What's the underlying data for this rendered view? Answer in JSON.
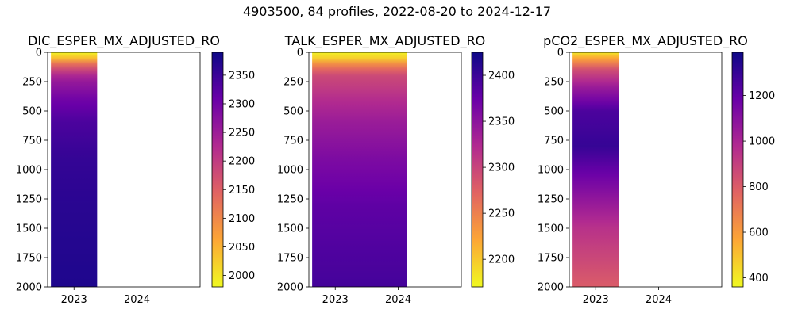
{
  "figure": {
    "suptitle": "4903500, 84 profiles, 2022-08-20 to 2024-12-17"
  },
  "colormap": {
    "name": "plasma_r",
    "stops": [
      "#f0f921",
      "#fca636",
      "#e16462",
      "#b12a90",
      "#6a00a8",
      "#0d0887"
    ]
  },
  "chart_data": [
    {
      "type": "heatmap",
      "title": "DIC_ESPER_MX_ADJUSTED_RO",
      "x": {
        "tick_labels": [
          "2023",
          "2024"
        ],
        "tick_values": [
          "2023-01-01",
          "2024-01-01"
        ],
        "range": [
          "2022-08-01",
          "2025-01-01"
        ]
      },
      "y": {
        "inverted": true,
        "range": [
          0,
          2000
        ],
        "tick_values": [
          0,
          250,
          500,
          750,
          1000,
          1250,
          1500,
          1750,
          2000
        ]
      },
      "data_extent": {
        "start": "2022-08-20",
        "end": "2023-05-15"
      },
      "colorbar": {
        "range": [
          1980,
          2390
        ],
        "ticks": [
          2000,
          2050,
          2100,
          2150,
          2200,
          2250,
          2300,
          2350
        ]
      },
      "profile": {
        "depths": [
          0,
          60,
          110,
          220,
          400,
          600,
          900,
          1300,
          2000
        ],
        "values": [
          1985,
          2050,
          2150,
          2250,
          2300,
          2335,
          2355,
          2365,
          2375
        ]
      }
    },
    {
      "type": "heatmap",
      "title": "TALK_ESPER_MX_ADJUSTED_RO",
      "x": {
        "tick_labels": [
          "2023",
          "2024"
        ],
        "tick_values": [
          "2023-01-01",
          "2024-01-01"
        ],
        "range": [
          "2022-08-01",
          "2025-01-01"
        ]
      },
      "y": {
        "inverted": true,
        "range": [
          0,
          2000
        ],
        "tick_values": [
          0,
          250,
          500,
          750,
          1000,
          1250,
          1500,
          1750,
          2000
        ]
      },
      "data_extent": {
        "start": "2022-08-20",
        "end": "2024-02-20"
      },
      "colorbar": {
        "range": [
          2170,
          2425
        ],
        "ticks": [
          2200,
          2250,
          2300,
          2350,
          2400
        ]
      },
      "profile": {
        "depths": [
          0,
          60,
          120,
          200,
          400,
          600,
          900,
          1300,
          2000
        ],
        "values": [
          2175,
          2200,
          2260,
          2295,
          2320,
          2340,
          2360,
          2380,
          2395
        ]
      }
    },
    {
      "type": "heatmap",
      "title": "pCO2_ESPER_MX_ADJUSTED_RO",
      "x": {
        "tick_labels": [
          "2023",
          "2024"
        ],
        "tick_values": [
          "2023-01-01",
          "2024-01-01"
        ],
        "range": [
          "2022-08-01",
          "2025-01-01"
        ]
      },
      "y": {
        "inverted": true,
        "range": [
          0,
          2000
        ],
        "tick_values": [
          0,
          250,
          500,
          750,
          1000,
          1250,
          1500,
          1750,
          2000
        ]
      },
      "data_extent": {
        "start": "2022-08-20",
        "end": "2023-05-15"
      },
      "colorbar": {
        "range": [
          360,
          1390
        ],
        "ticks": [
          400,
          600,
          800,
          1000,
          1200
        ]
      },
      "profile": {
        "depths": [
          0,
          60,
          150,
          300,
          500,
          800,
          1100,
          1500,
          2000
        ],
        "values": [
          400,
          600,
          850,
          1050,
          1250,
          1300,
          1150,
          950,
          800
        ]
      }
    }
  ]
}
